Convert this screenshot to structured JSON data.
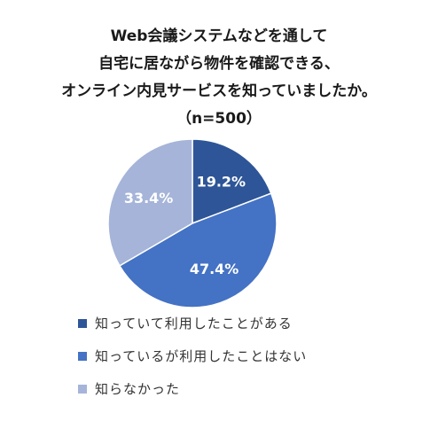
{
  "chart_data": {
    "type": "pie",
    "title_lines": [
      "Web会議システムなどを通して",
      "自宅に居ながら物件を確認できる、",
      "オンライン内見サービスを知っていましたか。",
      "（n=500）"
    ],
    "slices": [
      {
        "label": "知っていて利用したことがある",
        "value": 19.2,
        "display": "19.2%",
        "color": "#2e5597"
      },
      {
        "label": "知っているが利用したことはない",
        "value": 47.4,
        "display": "47.4%",
        "color": "#4472c4"
      },
      {
        "label": "知らなかった",
        "value": 33.4,
        "display": "33.4%",
        "color": "#a5b4d8"
      }
    ],
    "legend_position": "bottom-left",
    "label_color": "#ffffff"
  }
}
